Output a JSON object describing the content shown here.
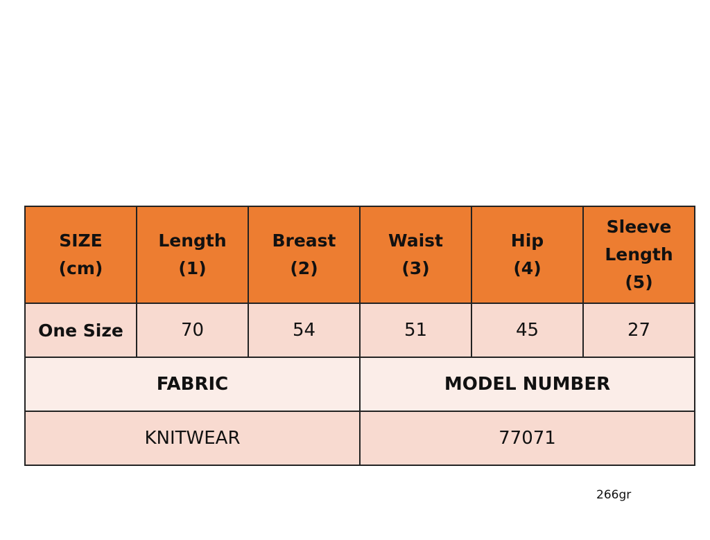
{
  "headers": [
    "SIZE\n(cm)",
    "Length\n(1)",
    "Breast\n(2)",
    "Waist\n(3)",
    "Hip\n(4)",
    "Sleeve\nLength\n(5)"
  ],
  "size_row": [
    "One Size",
    "70",
    "54",
    "51",
    "45",
    "27"
  ],
  "fabric_label": "FABRIC",
  "model_label": "MODEL NUMBER",
  "fabric_value": "KNITWEAR",
  "model_value": "77071",
  "weight": "266gr",
  "colors": {
    "header": "#ED7D31",
    "row": "#F8DAD0",
    "label_row": "#FBEDE8"
  }
}
